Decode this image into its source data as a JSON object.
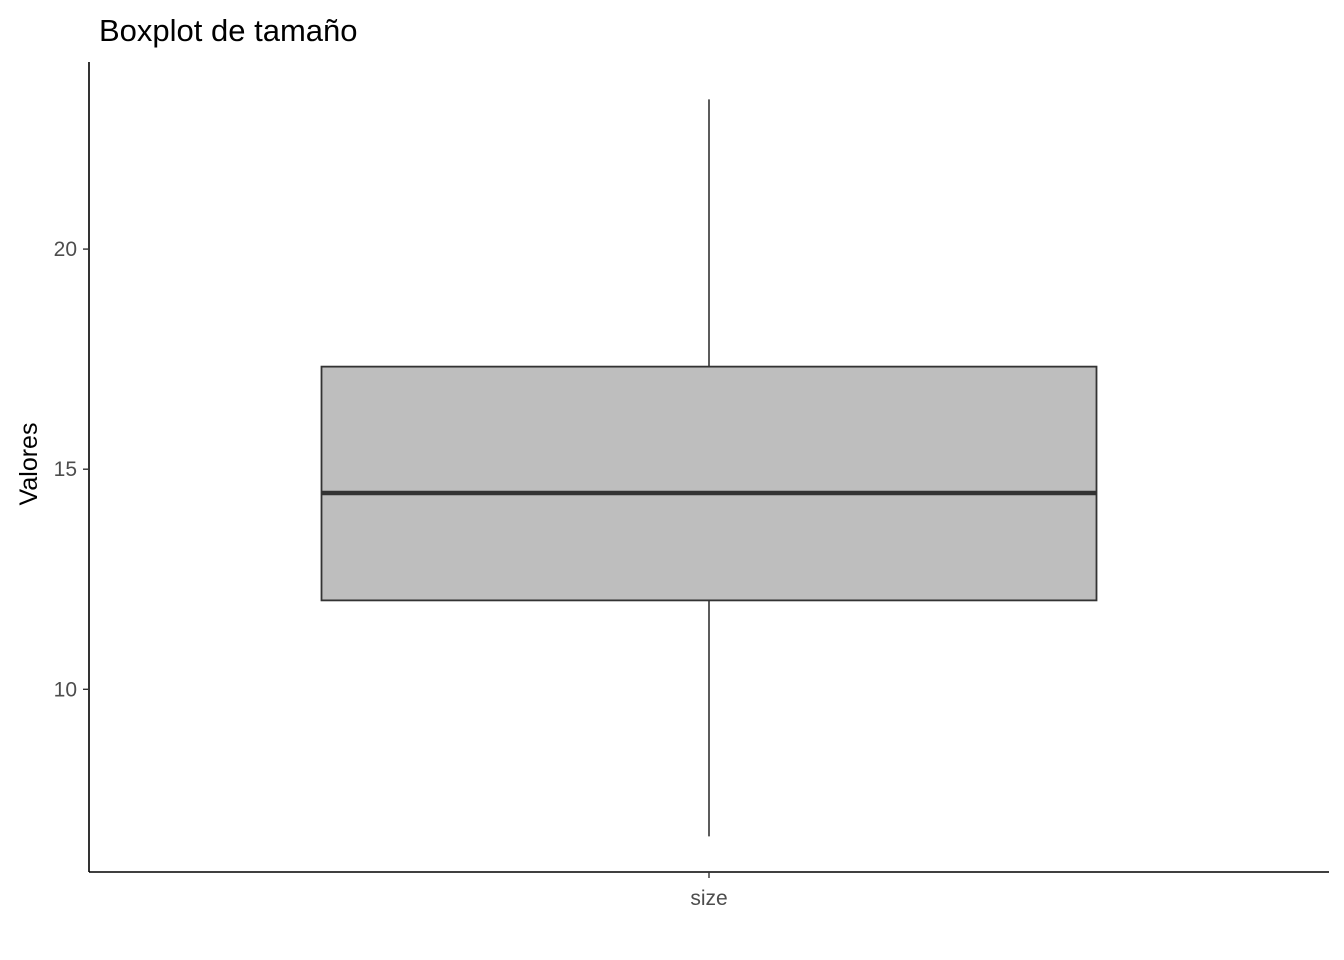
{
  "chart_data": {
    "type": "boxplot",
    "title": "Boxplot de tamaño",
    "xlabel": "",
    "ylabel": "Valores",
    "categories": [
      "size"
    ],
    "boxes": [
      {
        "category": "size",
        "whisker_low": 6.66,
        "q1": 12.02,
        "median": 14.46,
        "q3": 17.33,
        "whisker_high": 23.4
      }
    ],
    "ylim": [
      5.85,
      24.25
    ],
    "yticks": [
      10,
      15,
      20
    ],
    "ytick_labels": [
      "10",
      "15",
      "20"
    ],
    "grid": false,
    "colors": {
      "box_fill": "#bebebe",
      "box_stroke": "#333333",
      "median": "#333333",
      "whisker": "#333333",
      "axis": "#000000",
      "tick_text": "#4d4d4d"
    }
  }
}
